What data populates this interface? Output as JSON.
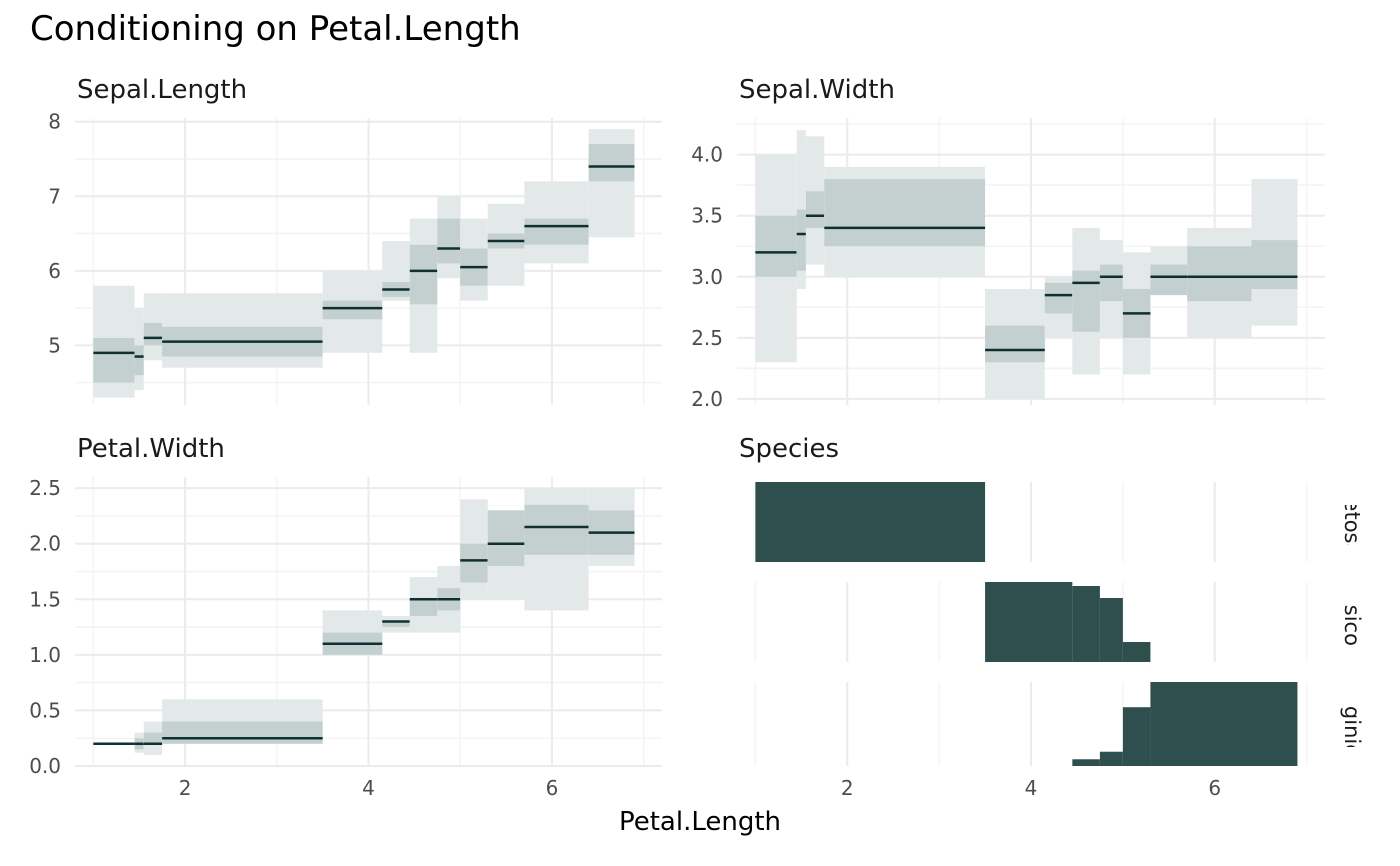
{
  "title": "Conditioning on Petal.Length",
  "colors": {
    "outer_band": "#e3e9e9",
    "inner_band": "#c4d0d0",
    "line": "#0f3030",
    "species_fill": "#2f4f4f",
    "grid_major": "#ebebeb",
    "grid_minor": "#f4f4f4"
  },
  "chart_data": [
    {
      "type": "area",
      "panel": "sepal_length",
      "title": "Sepal.Length",
      "xlabel": "Petal.Length",
      "xlim": [
        0.8,
        7.2
      ],
      "ylim": [
        4.2,
        8.05
      ],
      "xticks": [
        2,
        4,
        6
      ],
      "xtick_labels": [
        "2",
        "4",
        "6"
      ],
      "yticks": [
        5,
        6,
        7,
        8
      ],
      "ytick_labels": [
        "5",
        "6",
        "7",
        "8"
      ],
      "show_x_labels": false,
      "segments": [
        {
          "x0": 1.0,
          "x1": 1.45,
          "lo_outer": 4.3,
          "hi_outer": 5.8,
          "lo_inner": 4.5,
          "hi_inner": 5.1,
          "median": 4.9
        },
        {
          "x0": 1.45,
          "x1": 1.55,
          "lo_outer": 4.4,
          "hi_outer": 5.5,
          "lo_inner": 4.6,
          "hi_inner": 5.0,
          "median": 4.85
        },
        {
          "x0": 1.55,
          "x1": 1.75,
          "lo_outer": 4.8,
          "hi_outer": 5.7,
          "lo_inner": 5.0,
          "hi_inner": 5.3,
          "median": 5.1
        },
        {
          "x0": 1.75,
          "x1": 3.5,
          "lo_outer": 4.7,
          "hi_outer": 5.7,
          "lo_inner": 4.85,
          "hi_inner": 5.25,
          "median": 5.05
        },
        {
          "x0": 3.5,
          "x1": 4.15,
          "lo_outer": 4.9,
          "hi_outer": 6.0,
          "lo_inner": 5.35,
          "hi_inner": 5.6,
          "median": 5.5
        },
        {
          "x0": 4.15,
          "x1": 4.45,
          "lo_outer": 5.6,
          "hi_outer": 6.4,
          "lo_inner": 5.65,
          "hi_inner": 5.85,
          "median": 5.75
        },
        {
          "x0": 4.45,
          "x1": 4.75,
          "lo_outer": 4.9,
          "hi_outer": 6.7,
          "lo_inner": 5.55,
          "hi_inner": 6.35,
          "median": 6.0
        },
        {
          "x0": 4.75,
          "x1": 5.0,
          "lo_outer": 5.9,
          "hi_outer": 7.0,
          "lo_inner": 6.1,
          "hi_inner": 6.7,
          "median": 6.3
        },
        {
          "x0": 5.0,
          "x1": 5.3,
          "lo_outer": 5.6,
          "hi_outer": 6.7,
          "lo_inner": 5.8,
          "hi_inner": 6.3,
          "median": 6.05
        },
        {
          "x0": 5.3,
          "x1": 5.7,
          "lo_outer": 5.8,
          "hi_outer": 6.9,
          "lo_inner": 6.3,
          "hi_inner": 6.5,
          "median": 6.4
        },
        {
          "x0": 5.7,
          "x1": 6.4,
          "lo_outer": 6.1,
          "hi_outer": 7.2,
          "lo_inner": 6.35,
          "hi_inner": 6.7,
          "median": 6.6
        },
        {
          "x0": 6.4,
          "x1": 6.9,
          "lo_outer": 6.45,
          "hi_outer": 7.9,
          "lo_inner": 7.2,
          "hi_inner": 7.7,
          "median": 7.4
        }
      ]
    },
    {
      "type": "area",
      "panel": "sepal_width",
      "title": "Sepal.Width",
      "xlabel": "Petal.Length",
      "xlim": [
        0.8,
        7.2
      ],
      "ylim": [
        1.95,
        4.3
      ],
      "xticks": [
        2,
        4,
        6
      ],
      "xtick_labels": [
        "2",
        "4",
        "6"
      ],
      "yticks": [
        2.0,
        2.5,
        3.0,
        3.5,
        4.0
      ],
      "ytick_labels": [
        "2.0",
        "2.5",
        "3.0",
        "3.5",
        "4.0"
      ],
      "show_x_labels": false,
      "segments": [
        {
          "x0": 1.0,
          "x1": 1.45,
          "lo_outer": 2.3,
          "hi_outer": 4.0,
          "lo_inner": 3.0,
          "hi_inner": 3.5,
          "median": 3.2
        },
        {
          "x0": 1.45,
          "x1": 1.55,
          "lo_outer": 2.9,
          "hi_outer": 4.2,
          "lo_inner": 3.05,
          "hi_inner": 3.55,
          "median": 3.35
        },
        {
          "x0": 1.55,
          "x1": 1.75,
          "lo_outer": 3.1,
          "hi_outer": 4.15,
          "lo_inner": 3.4,
          "hi_inner": 3.7,
          "median": 3.5
        },
        {
          "x0": 1.75,
          "x1": 3.5,
          "lo_outer": 3.0,
          "hi_outer": 3.9,
          "lo_inner": 3.25,
          "hi_inner": 3.8,
          "median": 3.4
        },
        {
          "x0": 3.5,
          "x1": 4.15,
          "lo_outer": 2.0,
          "hi_outer": 2.9,
          "lo_inner": 2.3,
          "hi_inner": 2.6,
          "median": 2.4
        },
        {
          "x0": 4.15,
          "x1": 4.45,
          "lo_outer": 2.5,
          "hi_outer": 3.0,
          "lo_inner": 2.7,
          "hi_inner": 2.95,
          "median": 2.85
        },
        {
          "x0": 4.45,
          "x1": 4.75,
          "lo_outer": 2.2,
          "hi_outer": 3.4,
          "lo_inner": 2.55,
          "hi_inner": 3.05,
          "median": 2.95
        },
        {
          "x0": 4.75,
          "x1": 5.0,
          "lo_outer": 2.5,
          "hi_outer": 3.3,
          "lo_inner": 2.8,
          "hi_inner": 3.1,
          "median": 3.0
        },
        {
          "x0": 5.0,
          "x1": 5.3,
          "lo_outer": 2.2,
          "hi_outer": 3.2,
          "lo_inner": 2.5,
          "hi_inner": 2.9,
          "median": 2.7
        },
        {
          "x0": 5.3,
          "x1": 5.7,
          "lo_outer": 2.85,
          "hi_outer": 3.25,
          "lo_inner": 2.85,
          "hi_inner": 3.1,
          "median": 3.0
        },
        {
          "x0": 5.7,
          "x1": 6.4,
          "lo_outer": 2.5,
          "hi_outer": 3.4,
          "lo_inner": 2.8,
          "hi_inner": 3.25,
          "median": 3.0
        },
        {
          "x0": 6.4,
          "x1": 6.9,
          "lo_outer": 2.6,
          "hi_outer": 3.8,
          "lo_inner": 2.9,
          "hi_inner": 3.3,
          "median": 3.0
        }
      ]
    },
    {
      "type": "area",
      "panel": "petal_width",
      "title": "Petal.Width",
      "xlabel": "Petal.Length",
      "xlim": [
        0.8,
        7.2
      ],
      "ylim": [
        0.0,
        2.6
      ],
      "xticks": [
        2,
        4,
        6
      ],
      "xtick_labels": [
        "2",
        "4",
        "6"
      ],
      "yticks": [
        0.0,
        0.5,
        1.0,
        1.5,
        2.0,
        2.5
      ],
      "ytick_labels": [
        "0.0",
        "0.5",
        "1.0",
        "1.5",
        "2.0",
        "2.5"
      ],
      "show_x_labels": true,
      "segments": [
        {
          "x0": 1.0,
          "x1": 1.45,
          "lo_outer": 0.2,
          "hi_outer": 0.2,
          "lo_inner": 0.2,
          "hi_inner": 0.2,
          "median": 0.2
        },
        {
          "x0": 1.45,
          "x1": 1.55,
          "lo_outer": 0.12,
          "hi_outer": 0.3,
          "lo_inner": 0.15,
          "hi_inner": 0.25,
          "median": 0.2
        },
        {
          "x0": 1.55,
          "x1": 1.75,
          "lo_outer": 0.1,
          "hi_outer": 0.4,
          "lo_inner": 0.2,
          "hi_inner": 0.3,
          "median": 0.2
        },
        {
          "x0": 1.75,
          "x1": 3.5,
          "lo_outer": 0.2,
          "hi_outer": 0.6,
          "lo_inner": 0.2,
          "hi_inner": 0.4,
          "median": 0.25
        },
        {
          "x0": 3.5,
          "x1": 4.15,
          "lo_outer": 1.0,
          "hi_outer": 1.4,
          "lo_inner": 1.0,
          "hi_inner": 1.2,
          "median": 1.1
        },
        {
          "x0": 4.15,
          "x1": 4.45,
          "lo_outer": 1.2,
          "hi_outer": 1.35,
          "lo_inner": 1.25,
          "hi_inner": 1.3,
          "median": 1.3
        },
        {
          "x0": 4.45,
          "x1": 4.75,
          "lo_outer": 1.2,
          "hi_outer": 1.7,
          "lo_inner": 1.35,
          "hi_inner": 1.5,
          "median": 1.5
        },
        {
          "x0": 4.75,
          "x1": 5.0,
          "lo_outer": 1.2,
          "hi_outer": 1.8,
          "lo_inner": 1.4,
          "hi_inner": 1.6,
          "median": 1.5
        },
        {
          "x0": 5.0,
          "x1": 5.3,
          "lo_outer": 1.5,
          "hi_outer": 2.4,
          "lo_inner": 1.65,
          "hi_inner": 2.0,
          "median": 1.85
        },
        {
          "x0": 5.3,
          "x1": 5.7,
          "lo_outer": 1.5,
          "hi_outer": 2.3,
          "lo_inner": 1.8,
          "hi_inner": 2.3,
          "median": 2.0
        },
        {
          "x0": 5.7,
          "x1": 6.4,
          "lo_outer": 1.4,
          "hi_outer": 2.5,
          "lo_inner": 1.9,
          "hi_inner": 2.35,
          "median": 2.15
        },
        {
          "x0": 6.4,
          "x1": 6.9,
          "lo_outer": 1.8,
          "hi_outer": 2.5,
          "lo_inner": 1.9,
          "hi_inner": 2.3,
          "median": 2.1
        }
      ]
    },
    {
      "type": "area",
      "panel": "species",
      "title": "Species",
      "xlabel": "Petal.Length",
      "xlim": [
        0.8,
        7.2
      ],
      "xticks": [
        2,
        4,
        6
      ],
      "xtick_labels": [
        "2",
        "4",
        "6"
      ],
      "show_x_labels": true,
      "facets": [
        {
          "label": "setosa",
          "steps": [
            {
              "x0": 1.0,
              "x1": 3.5,
              "value": 1.0
            }
          ]
        },
        {
          "label": "versicolor",
          "steps": [
            {
              "x0": 3.5,
              "x1": 4.45,
              "value": 1.0
            },
            {
              "x0": 4.45,
              "x1": 4.75,
              "value": 0.95
            },
            {
              "x0": 4.75,
              "x1": 5.0,
              "value": 0.8
            },
            {
              "x0": 5.0,
              "x1": 5.3,
              "value": 0.25
            }
          ]
        },
        {
          "label": "virginica",
          "steps": [
            {
              "x0": 4.45,
              "x1": 4.75,
              "value": 0.08
            },
            {
              "x0": 4.75,
              "x1": 5.0,
              "value": 0.17
            },
            {
              "x0": 5.0,
              "x1": 5.3,
              "value": 0.7
            },
            {
              "x0": 5.3,
              "x1": 6.9,
              "value": 1.0
            }
          ]
        }
      ]
    }
  ],
  "xlabel": "Petal.Length"
}
